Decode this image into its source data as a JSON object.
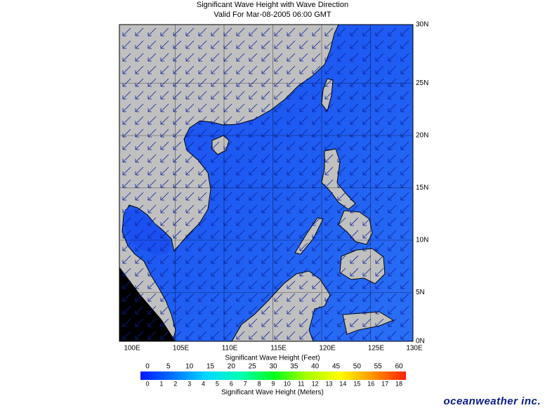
{
  "header": {
    "title": "Significant Wave Height with Wave Direction",
    "subtitle": "Valid For Mar-08-2005 06:00 GMT"
  },
  "map": {
    "lon_labels": [
      "100E",
      "105E",
      "110E",
      "115E",
      "120E",
      "125E",
      "130E"
    ],
    "lat_labels": [
      "30N",
      "25N",
      "20N",
      "15N",
      "10N",
      "5N",
      "0N"
    ]
  },
  "legend": {
    "feet_label": "Significant Wave Height (Feet)",
    "feet_ticks": [
      0,
      5,
      10,
      15,
      20,
      25,
      30,
      35,
      40,
      45,
      50,
      55,
      60
    ],
    "meters_label": "Significant Wave Height (Meters)",
    "meters_ticks": [
      0,
      1,
      2,
      3,
      4,
      5,
      6,
      7,
      8,
      9,
      10,
      11,
      12,
      13,
      14,
      15,
      16,
      17,
      18
    ]
  },
  "brand": "oceanweather inc."
}
